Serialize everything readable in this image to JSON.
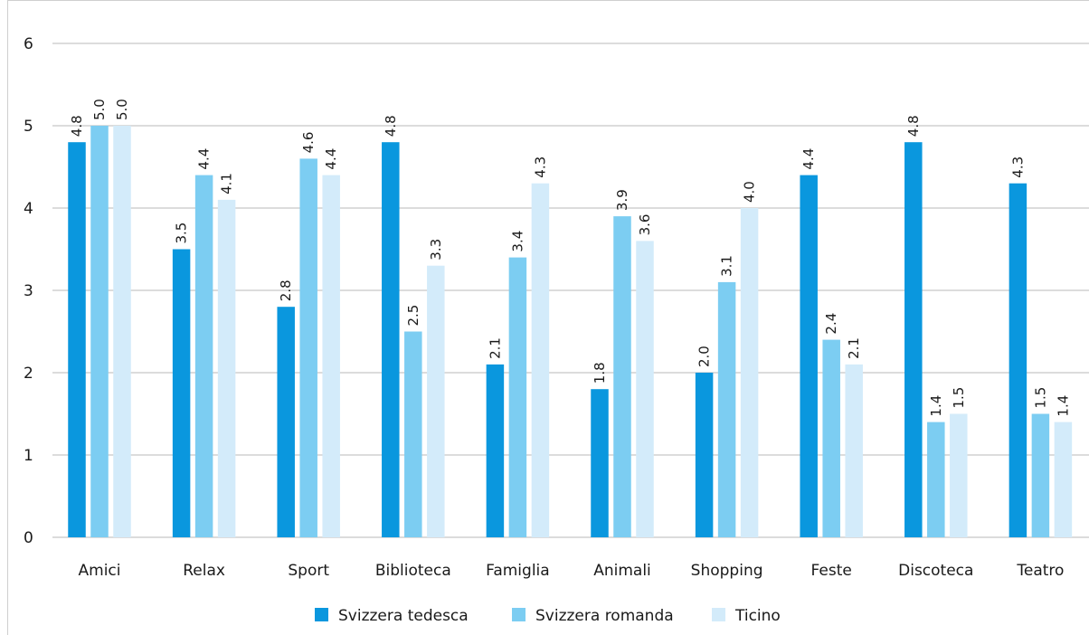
{
  "chart_data": {
    "type": "bar",
    "categories": [
      "Amici",
      "Relax",
      "Sport",
      "Biblioteca",
      "Famiglia",
      "Animali",
      "Shopping",
      "Feste",
      "Discoteca",
      "Teatro"
    ],
    "series": [
      {
        "name": "Svizzera tedesca",
        "color": "#0a97de",
        "values": [
          4.8,
          3.5,
          2.8,
          4.8,
          2.1,
          1.8,
          2.0,
          4.4,
          4.8,
          4.3
        ]
      },
      {
        "name": "Svizzera romanda",
        "color": "#7ccdf2",
        "values": [
          5.0,
          4.4,
          4.6,
          2.5,
          3.4,
          3.9,
          3.1,
          2.4,
          1.4,
          1.5
        ]
      },
      {
        "name": "Ticino",
        "color": "#d3ebfa",
        "values": [
          5.0,
          4.1,
          4.4,
          3.3,
          4.3,
          3.6,
          4.0,
          2.1,
          1.5,
          1.4
        ]
      }
    ],
    "value_labels": [
      [
        "4.8",
        "3.5",
        "2.8",
        "4.8",
        "2.1",
        "1.8",
        "2.0",
        "4.4",
        "4.8",
        "4.3"
      ],
      [
        "5.0",
        "4.4",
        "4.6",
        "2.5",
        "3.4",
        "3.9",
        "3.1",
        "2.4",
        "1.4",
        "1.5"
      ],
      [
        "5.0",
        "4.1",
        "4.4",
        "3.3",
        "4.3",
        "3.6",
        "4.0",
        "2.1",
        "1.5",
        "1.4"
      ]
    ],
    "y_ticks": [
      "0",
      "1",
      "2",
      "3",
      "4",
      "5",
      "6"
    ],
    "ylim": [
      0,
      6
    ],
    "grid": true,
    "legend_position": "bottom",
    "title": "",
    "xlabel": "",
    "ylabel": ""
  },
  "colors": {
    "grid": "#c8c8c8",
    "frame": "#cfcfcf",
    "text": "#1a1a1a"
  }
}
